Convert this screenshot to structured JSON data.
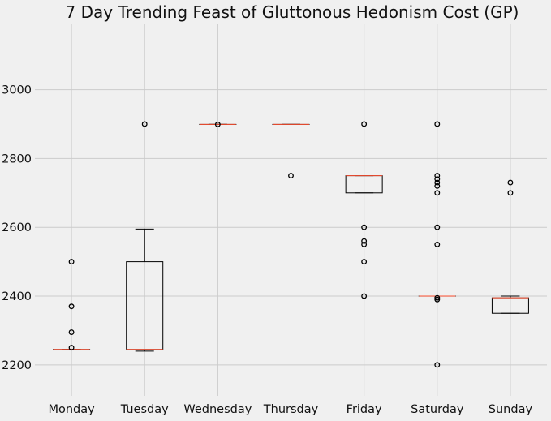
{
  "chart_data": {
    "type": "boxplot",
    "title": "7 Day Trending Feast of Gluttonous Hedonism Cost (GP)",
    "xlabel": "",
    "ylabel": "",
    "ylim": [
      2110,
      3190
    ],
    "yticks": [
      2200,
      2400,
      2600,
      2800,
      3000
    ],
    "grid": true,
    "categories": [
      "Monday",
      "Tuesday",
      "Wednesday",
      "Thursday",
      "Friday",
      "Saturday",
      "Sunday"
    ],
    "boxes": [
      {
        "category": "Monday",
        "whislo": 2245,
        "q1": 2245,
        "med": 2245,
        "q3": 2245,
        "whishi": 2245,
        "fliers": [
          2250,
          2295,
          2370,
          2500
        ]
      },
      {
        "category": "Tuesday",
        "whislo": 2240,
        "q1": 2245,
        "med": 2245,
        "q3": 2500,
        "whishi": 2595,
        "fliers": [
          2900
        ]
      },
      {
        "category": "Wednesday",
        "whislo": 2899,
        "q1": 2899,
        "med": 2899,
        "q3": 2899,
        "whishi": 2899,
        "fliers": [
          2899
        ]
      },
      {
        "category": "Thursday",
        "whislo": 2899,
        "q1": 2899,
        "med": 2899,
        "q3": 2899,
        "whishi": 2899,
        "fliers": [
          2750
        ]
      },
      {
        "category": "Friday",
        "whislo": 2700,
        "q1": 2700,
        "med": 2750,
        "q3": 2750,
        "whishi": 2750,
        "fliers": [
          2900,
          2600,
          2560,
          2550,
          2500,
          2400
        ]
      },
      {
        "category": "Saturday",
        "whislo": 2400,
        "q1": 2400,
        "med": 2400,
        "q3": 2400,
        "whishi": 2400,
        "fliers": [
          2900,
          2750,
          2740,
          2730,
          2720,
          2700,
          2600,
          2550,
          2395,
          2390,
          2200
        ]
      },
      {
        "category": "Sunday",
        "whislo": 2350,
        "q1": 2350,
        "med": 2395,
        "q3": 2395,
        "whishi": 2400,
        "fliers": [
          2730,
          2700
        ]
      }
    ],
    "colors": {
      "background": "#f0f0f0",
      "grid": "#cbcbcb",
      "box": "#000000",
      "median": "#fc4f30",
      "text": "#111111"
    }
  }
}
